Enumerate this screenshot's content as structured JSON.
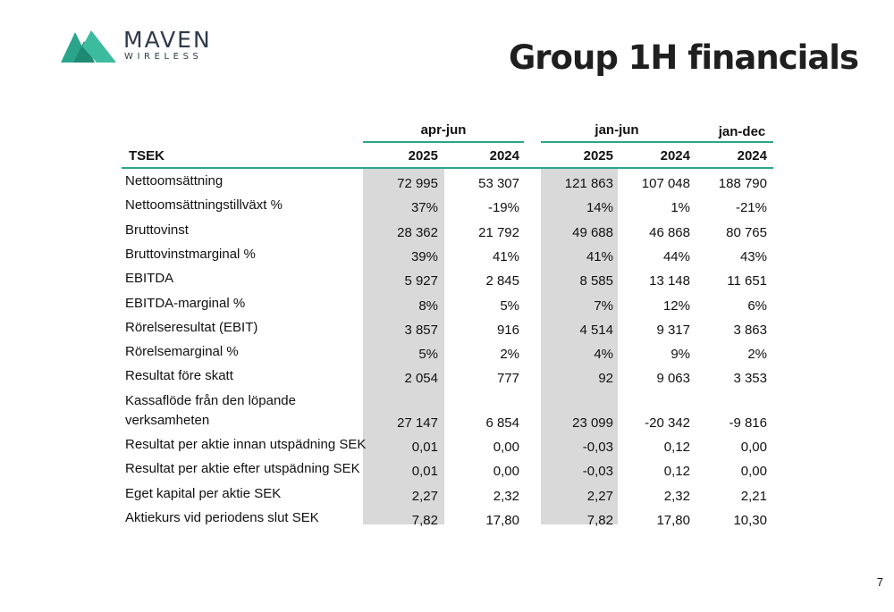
{
  "brand": {
    "name": "MAVEN",
    "subtitle": "WIRELESS",
    "accent_color": "#2aa58c"
  },
  "title": "Group 1H financials",
  "page_number": "7",
  "table": {
    "group_headers": [
      "apr-jun",
      "jan-jun",
      "jan-dec"
    ],
    "label_header": "TSEK",
    "year_headers": [
      "2025",
      "2024",
      "2025",
      "2024",
      "2024"
    ],
    "rows": [
      {
        "label": "Nettoomsättning",
        "values": [
          "72 995",
          "53 307",
          "121 863",
          "107 048",
          "188 790"
        ]
      },
      {
        "label": "Nettoomsättningstillväxt %",
        "values": [
          "37%",
          "-19%",
          "14%",
          "1%",
          "-21%"
        ]
      },
      {
        "label": "Bruttovinst",
        "values": [
          "28 362",
          "21 792",
          "49 688",
          "46 868",
          "80 765"
        ]
      },
      {
        "label": "Bruttovinstmarginal %",
        "values": [
          "39%",
          "41%",
          "41%",
          "44%",
          "43%"
        ]
      },
      {
        "label": "EBITDA",
        "values": [
          "5 927",
          "2 845",
          "8 585",
          "13 148",
          "11 651"
        ]
      },
      {
        "label": "EBITDA-marginal %",
        "values": [
          "8%",
          "5%",
          "7%",
          "12%",
          "6%"
        ]
      },
      {
        "label": "Rörelseresultat (EBIT)",
        "values": [
          "3 857",
          "916",
          "4 514",
          "9 317",
          "3 863"
        ]
      },
      {
        "label": "Rörelsemarginal %",
        "values": [
          "5%",
          "2%",
          "4%",
          "9%",
          "2%"
        ]
      },
      {
        "label": "Resultat före skatt",
        "values": [
          "2 054",
          "777",
          "92",
          "9 063",
          "3 353"
        ]
      },
      {
        "label": "Kassaflöde från den löpande",
        "label2": "verksamheten",
        "values": [
          "27 147",
          "6 854",
          "23 099",
          "-20 342",
          "-9 816"
        ]
      },
      {
        "label": "Resultat per aktie innan utspädning SEK",
        "values": [
          "0,01",
          "0,00",
          "-0,03",
          "0,12",
          "0,00"
        ]
      },
      {
        "label": "Resultat per aktie efter utspädning SEK",
        "values": [
          "0,01",
          "0,00",
          "-0,03",
          "0,12",
          "0,00"
        ]
      },
      {
        "label": "Eget kapital per aktie SEK",
        "values": [
          "2,27",
          "2,32",
          "2,27",
          "2,32",
          "2,21"
        ]
      },
      {
        "label": "Aktiekurs vid periodens slut SEK",
        "values": [
          "7,82",
          "17,80",
          "7,82",
          "17,80",
          "10,30"
        ]
      }
    ]
  }
}
